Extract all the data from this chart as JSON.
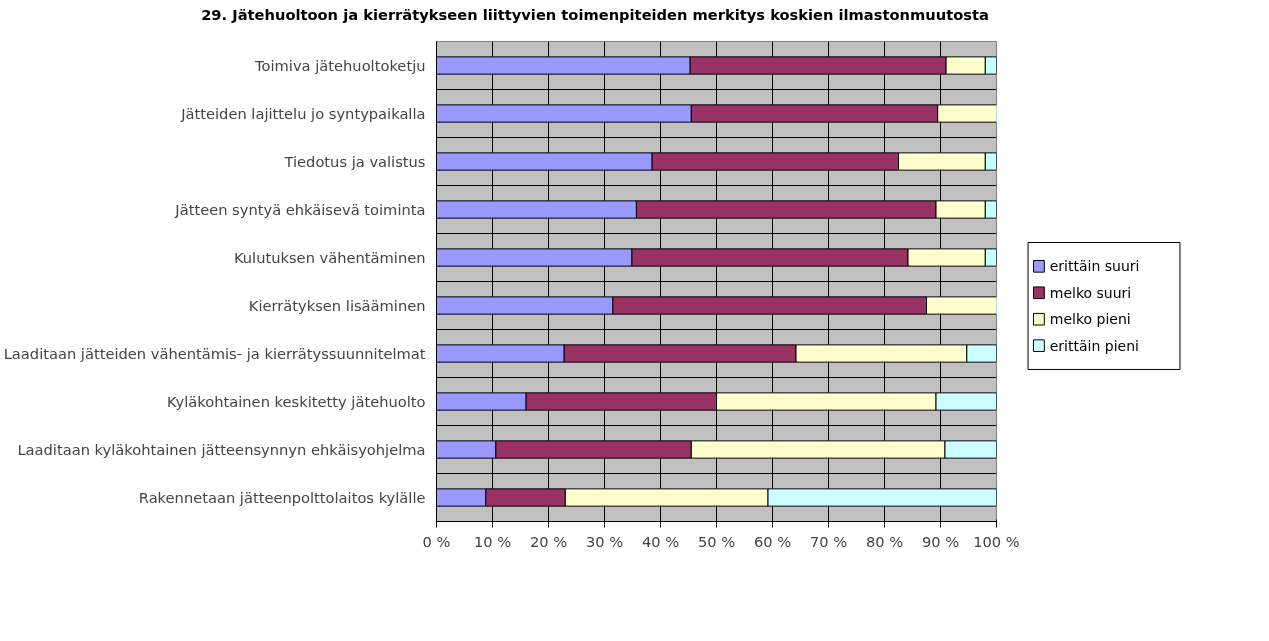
{
  "chart_data": {
    "type": "bar",
    "orientation": "horizontal",
    "stacked": true,
    "title": "29. Jätehuoltoon ja kierrätykseen liittyvien toimenpiteiden merkitys koskien ilmastonmuutosta",
    "categories": [
      "Toimiva jätehuoltoketju",
      "Jätteiden lajittelu jo syntypaikalla",
      "Tiedotus ja valistus",
      "Jätteen syntyä ehkäisevä toiminta",
      "Kulutuksen vähentäminen",
      "Kierrätyksen lisääminen",
      "Laaditaan jätteiden vähentämis- ja kierrätyssuunnitelmat",
      "Kyläkohtainen keskitetty jätehuolto",
      "Laaditaan kyläkohtainen jätteensynnyn ehkäisyohjelma",
      "Rakennetaan jätteenpolttolaitos kylälle"
    ],
    "series": [
      {
        "name": "erittäin suuri",
        "color": "#9999ff",
        "values": [
          45.3,
          45.5,
          38.5,
          35.7,
          34.9,
          31.5,
          22.8,
          16,
          10.6,
          8.8
        ]
      },
      {
        "name": "melko suuri",
        "color": "#993366",
        "values": [
          45.7,
          44,
          44,
          53.5,
          49.3,
          56,
          41.4,
          34,
          34.9,
          14.2
        ]
      },
      {
        "name": "melko pieni",
        "color": "#ffffcc",
        "values": [
          7,
          10.5,
          15.5,
          8.8,
          13.8,
          12.5,
          30.5,
          39.2,
          45.3,
          36.2
        ]
      },
      {
        "name": "erittäin pieni",
        "color": "#ccffff",
        "values": [
          2,
          0,
          2,
          2,
          2,
          0,
          5.3,
          10.8,
          9.2,
          40.8
        ]
      }
    ],
    "xlim": [
      0,
      100
    ],
    "xticks": [
      {
        "value": 0,
        "label": "0 %"
      },
      {
        "value": 10,
        "label": "10 %"
      },
      {
        "value": 20,
        "label": "20 %"
      },
      {
        "value": 30,
        "label": "30 %"
      },
      {
        "value": 40,
        "label": "40 %"
      },
      {
        "value": 50,
        "label": "50 %"
      },
      {
        "value": 60,
        "label": "60 %"
      },
      {
        "value": 70,
        "label": "70 %"
      },
      {
        "value": 80,
        "label": "80 %"
      },
      {
        "value": 90,
        "label": "90 %"
      },
      {
        "value": 100,
        "label": "100 %"
      }
    ],
    "grid": true,
    "legend": "right"
  }
}
